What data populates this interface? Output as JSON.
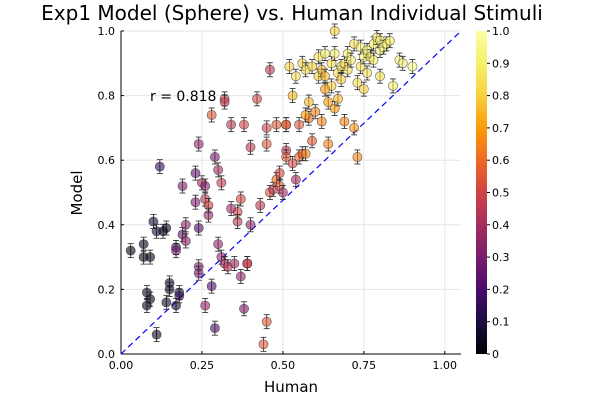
{
  "chart_data": {
    "type": "scatter",
    "title": "Exp1 Model (Sphere) vs. Human Individual Stimuli",
    "xlabel": "Human",
    "ylabel": "Model",
    "xlim": [
      0.0,
      1.05
    ],
    "ylim": [
      0.0,
      1.0
    ],
    "xticks": [
      "0.00",
      "0.25",
      "0.50",
      "0.75",
      "1.00"
    ],
    "yticks": [
      "0.0",
      "0.2",
      "0.4",
      "0.6",
      "0.8",
      "1.0"
    ],
    "grid": true,
    "annotation": "r = 0.818",
    "identity_line": {
      "from": [
        0,
        0
      ],
      "to": [
        1.05,
        1.05
      ],
      "color": "#0000ff",
      "style": "dashed"
    },
    "colorbar": {
      "colormap": "inferno",
      "range": [
        0.0,
        1.0
      ],
      "ticks": [
        "0",
        "0.1",
        "0.2",
        "0.3",
        "0.4",
        "0.5",
        "0.6",
        "0.7",
        "0.8",
        "0.9",
        "1.0"
      ]
    },
    "points": [
      [
        0.03,
        0.32,
        0.02
      ],
      [
        0.07,
        0.34,
        0.03
      ],
      [
        0.07,
        0.3,
        0.02
      ],
      [
        0.09,
        0.3,
        0.03
      ],
      [
        0.08,
        0.19,
        0.04
      ],
      [
        0.09,
        0.17,
        0.03
      ],
      [
        0.08,
        0.15,
        0.02
      ],
      [
        0.1,
        0.41,
        0.1
      ],
      [
        0.11,
        0.38,
        0.08
      ],
      [
        0.11,
        0.06,
        0.05
      ],
      [
        0.12,
        0.58,
        0.15
      ],
      [
        0.13,
        0.38,
        0.05
      ],
      [
        0.14,
        0.39,
        0.04
      ],
      [
        0.14,
        0.16,
        0.05
      ],
      [
        0.15,
        0.22,
        0.06
      ],
      [
        0.15,
        0.2,
        0.05
      ],
      [
        0.17,
        0.33,
        0.12
      ],
      [
        0.17,
        0.15,
        0.06
      ],
      [
        0.18,
        0.19,
        0.1
      ],
      [
        0.18,
        0.18,
        0.15
      ],
      [
        0.19,
        0.52,
        0.3
      ],
      [
        0.19,
        0.37,
        0.25
      ],
      [
        0.2,
        0.4,
        0.35
      ],
      [
        0.23,
        0.47,
        0.3
      ],
      [
        0.23,
        0.56,
        0.25
      ],
      [
        0.24,
        0.39,
        0.2
      ],
      [
        0.24,
        0.27,
        0.3
      ],
      [
        0.24,
        0.25,
        0.3
      ],
      [
        0.24,
        0.65,
        0.35
      ],
      [
        0.25,
        0.53,
        0.4
      ],
      [
        0.26,
        0.52,
        0.3
      ],
      [
        0.26,
        0.48,
        0.45
      ],
      [
        0.26,
        0.15,
        0.35
      ],
      [
        0.27,
        0.46,
        0.5
      ],
      [
        0.28,
        0.74,
        0.55
      ],
      [
        0.28,
        0.21,
        0.2
      ],
      [
        0.29,
        0.08,
        0.2
      ],
      [
        0.29,
        0.61,
        0.3
      ],
      [
        0.3,
        0.57,
        0.4
      ],
      [
        0.3,
        0.34,
        0.35
      ],
      [
        0.31,
        0.53,
        0.45
      ],
      [
        0.31,
        0.3,
        0.35
      ],
      [
        0.32,
        0.79,
        0.5
      ],
      [
        0.32,
        0.78,
        0.45
      ],
      [
        0.32,
        0.28,
        0.4
      ],
      [
        0.33,
        0.27,
        0.45
      ],
      [
        0.34,
        0.71,
        0.45
      ],
      [
        0.35,
        0.28,
        0.4
      ],
      [
        0.36,
        0.44,
        0.5
      ],
      [
        0.36,
        0.41,
        0.45
      ],
      [
        0.37,
        0.48,
        0.5
      ],
      [
        0.37,
        0.24,
        0.35
      ],
      [
        0.38,
        0.71,
        0.5
      ],
      [
        0.38,
        0.14,
        0.3
      ],
      [
        0.39,
        0.28,
        0.4
      ],
      [
        0.39,
        0.28,
        0.5
      ],
      [
        0.4,
        0.64,
        0.45
      ],
      [
        0.42,
        0.79,
        0.5
      ],
      [
        0.44,
        0.03,
        0.55
      ],
      [
        0.45,
        0.1,
        0.55
      ],
      [
        0.45,
        0.7,
        0.5
      ],
      [
        0.45,
        0.65,
        0.55
      ],
      [
        0.46,
        0.88,
        0.45
      ],
      [
        0.46,
        0.5,
        0.55
      ],
      [
        0.47,
        0.51,
        0.45
      ],
      [
        0.48,
        0.71,
        0.55
      ],
      [
        0.48,
        0.54,
        0.6
      ],
      [
        0.49,
        0.52,
        0.55
      ],
      [
        0.5,
        0.5,
        0.4
      ],
      [
        0.51,
        0.71,
        0.6
      ],
      [
        0.51,
        0.71,
        0.55
      ],
      [
        0.51,
        0.63,
        0.45
      ],
      [
        0.51,
        0.61,
        0.55
      ],
      [
        0.52,
        0.89,
        0.8
      ],
      [
        0.53,
        0.59,
        0.5
      ],
      [
        0.53,
        0.8,
        0.75
      ],
      [
        0.54,
        0.86,
        0.85
      ],
      [
        0.54,
        0.54,
        0.4
      ],
      [
        0.55,
        0.71,
        0.55
      ],
      [
        0.55,
        0.61,
        0.6
      ],
      [
        0.56,
        0.62,
        0.55
      ],
      [
        0.56,
        0.9,
        0.8
      ],
      [
        0.57,
        0.88,
        0.85
      ],
      [
        0.57,
        0.62,
        0.65
      ],
      [
        0.58,
        0.78,
        0.75
      ],
      [
        0.58,
        0.73,
        0.6
      ],
      [
        0.59,
        0.89,
        0.8
      ],
      [
        0.59,
        0.66,
        0.55
      ],
      [
        0.6,
        0.75,
        0.65
      ],
      [
        0.61,
        0.86,
        0.8
      ],
      [
        0.61,
        0.92,
        0.85
      ],
      [
        0.62,
        0.72,
        0.65
      ],
      [
        0.62,
        0.88,
        0.75
      ],
      [
        0.63,
        0.93,
        0.9
      ],
      [
        0.63,
        0.86,
        0.75
      ],
      [
        0.64,
        0.78,
        0.7
      ],
      [
        0.64,
        0.65,
        0.65
      ],
      [
        0.65,
        0.9,
        0.85
      ],
      [
        0.65,
        0.83,
        0.8
      ],
      [
        0.66,
        0.76,
        0.7
      ],
      [
        0.66,
        0.93,
        0.9
      ],
      [
        0.66,
        1.0,
        0.8
      ],
      [
        0.67,
        0.87,
        0.85
      ],
      [
        0.67,
        0.79,
        0.75
      ],
      [
        0.68,
        0.89,
        0.85
      ],
      [
        0.68,
        0.85,
        0.8
      ],
      [
        0.69,
        0.9,
        0.85
      ],
      [
        0.69,
        0.72,
        0.65
      ],
      [
        0.7,
        0.93,
        0.9
      ],
      [
        0.7,
        0.88,
        0.85
      ],
      [
        0.71,
        0.91,
        0.9
      ],
      [
        0.72,
        0.96,
        0.85
      ],
      [
        0.72,
        0.7,
        0.7
      ],
      [
        0.73,
        0.61,
        0.65
      ],
      [
        0.73,
        0.84,
        0.85
      ],
      [
        0.74,
        0.95,
        0.9
      ],
      [
        0.74,
        0.89,
        0.85
      ],
      [
        0.75,
        0.92,
        0.9
      ],
      [
        0.76,
        0.87,
        0.85
      ],
      [
        0.76,
        0.94,
        0.9
      ],
      [
        0.77,
        0.92,
        0.85
      ],
      [
        0.78,
        0.96,
        0.9
      ],
      [
        0.78,
        0.91,
        0.9
      ],
      [
        0.79,
        0.98,
        0.9
      ],
      [
        0.8,
        0.94,
        0.9
      ],
      [
        0.8,
        0.97,
        0.9
      ],
      [
        0.81,
        0.95,
        0.95
      ],
      [
        0.82,
        0.96,
        0.9
      ],
      [
        0.83,
        0.97,
        0.9
      ],
      [
        0.84,
        0.83,
        0.9
      ],
      [
        0.86,
        0.91,
        0.95
      ],
      [
        0.87,
        0.9,
        0.95
      ],
      [
        0.9,
        0.89,
        0.95
      ],
      [
        0.17,
        0.32,
        0.3
      ],
      [
        0.2,
        0.35,
        0.35
      ],
      [
        0.27,
        0.43,
        0.35
      ],
      [
        0.34,
        0.45,
        0.4
      ],
      [
        0.4,
        0.4,
        0.35
      ],
      [
        0.43,
        0.46,
        0.45
      ],
      [
        0.49,
        0.56,
        0.5
      ],
      [
        0.57,
        0.74,
        0.7
      ],
      [
        0.63,
        0.82,
        0.7
      ],
      [
        0.75,
        0.82,
        0.8
      ],
      [
        0.8,
        0.86,
        0.85
      ]
    ]
  }
}
